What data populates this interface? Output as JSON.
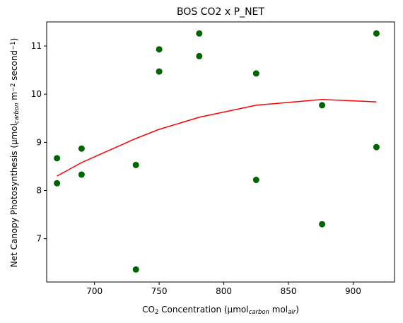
{
  "chart_data": {
    "type": "scatter",
    "title": "BOS CO2 x P_NET",
    "xlabel": {
      "parts": [
        {
          "t": "CO",
          "s": "n"
        },
        {
          "t": "2",
          "s": "sub"
        },
        {
          "t": " Concentration (µmol",
          "s": "n"
        },
        {
          "t": "carbon",
          "s": "sub-it"
        },
        {
          "t": " mol",
          "s": "n"
        },
        {
          "t": "air",
          "s": "sub-it"
        },
        {
          "t": ")",
          "s": "n"
        }
      ]
    },
    "ylabel": {
      "parts": [
        {
          "t": "Net Canopy Photosynthesis (µmol",
          "s": "n"
        },
        {
          "t": "carbon",
          "s": "sub-it"
        },
        {
          "t": " m",
          "s": "n"
        },
        {
          "t": "−2",
          "s": "sup"
        },
        {
          "t": " second",
          "s": "n"
        },
        {
          "t": "−1",
          "s": "sup"
        },
        {
          "t": ")",
          "s": "n"
        }
      ]
    },
    "xlim": [
      663,
      932
    ],
    "ylim": [
      6.1,
      11.5
    ],
    "xticks": [
      700,
      750,
      800,
      850,
      900
    ],
    "yticks": [
      7,
      8,
      9,
      10,
      11
    ],
    "grid": false,
    "series": [
      {
        "kind": "scatter",
        "color": "#006400",
        "points": [
          [
            671,
            8.67
          ],
          [
            671,
            8.15
          ],
          [
            690,
            8.87
          ],
          [
            690,
            8.33
          ],
          [
            732,
            8.53
          ],
          [
            732,
            6.36
          ],
          [
            750,
            10.93
          ],
          [
            750,
            10.47
          ],
          [
            781,
            11.26
          ],
          [
            781,
            10.79
          ],
          [
            825,
            10.43
          ],
          [
            825,
            8.22
          ],
          [
            876,
            9.77
          ],
          [
            876,
            7.3
          ],
          [
            918,
            11.26
          ],
          [
            918,
            8.9
          ]
        ]
      },
      {
        "kind": "line",
        "color": "#ff0000",
        "points": [
          [
            671,
            8.3
          ],
          [
            690,
            8.58
          ],
          [
            732,
            9.08
          ],
          [
            750,
            9.27
          ],
          [
            781,
            9.52
          ],
          [
            825,
            9.77
          ],
          [
            876,
            9.89
          ],
          [
            918,
            9.84
          ]
        ]
      }
    ]
  }
}
